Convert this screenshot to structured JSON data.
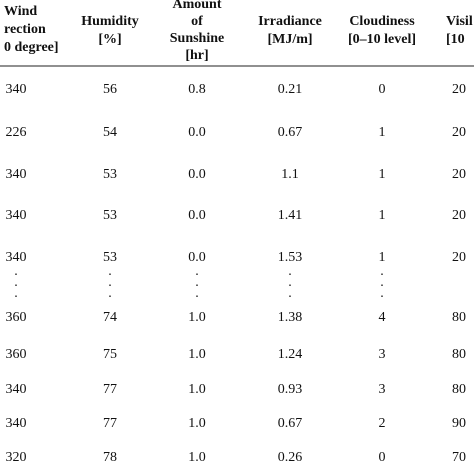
{
  "table": {
    "header": [
      [
        "Wind",
        "rection",
        "0 degree]"
      ],
      [
        "Humidity",
        "[%]"
      ],
      [
        "Amount",
        "of",
        "Sunshine",
        "[hr]"
      ],
      [
        "Irradiance",
        "[MJ/m]"
      ],
      [
        "Cloudiness",
        "[0–10 level]"
      ],
      [
        "Visil",
        "[10"
      ]
    ],
    "rows": [
      [
        "340",
        "56",
        "0.8",
        "0.21",
        "0",
        "20"
      ],
      [
        "226",
        "54",
        "0.0",
        "0.67",
        "1",
        "20"
      ],
      [
        "340",
        "53",
        "0.0",
        "1.1",
        "1",
        "20"
      ],
      [
        "340",
        "53",
        "0.0",
        "1.41",
        "1",
        "20"
      ],
      [
        "340",
        "53",
        "0.0",
        "1.53",
        "1",
        "20"
      ],
      [
        ".",
        ".",
        ".",
        ".",
        ".",
        ""
      ],
      [
        ".",
        ".",
        ".",
        ".",
        ".",
        ""
      ],
      [
        ".",
        ".",
        ".",
        ".",
        ".",
        ""
      ],
      [
        "360",
        "74",
        "1.0",
        "1.38",
        "4",
        "80"
      ],
      [
        "360",
        "75",
        "1.0",
        "1.24",
        "3",
        "80"
      ],
      [
        "340",
        "77",
        "1.0",
        "0.93",
        "3",
        "80"
      ],
      [
        "340",
        "77",
        "1.0",
        "0.67",
        "2",
        "90"
      ],
      [
        "320",
        "78",
        "1.0",
        "0.26",
        "0",
        "70"
      ]
    ]
  }
}
